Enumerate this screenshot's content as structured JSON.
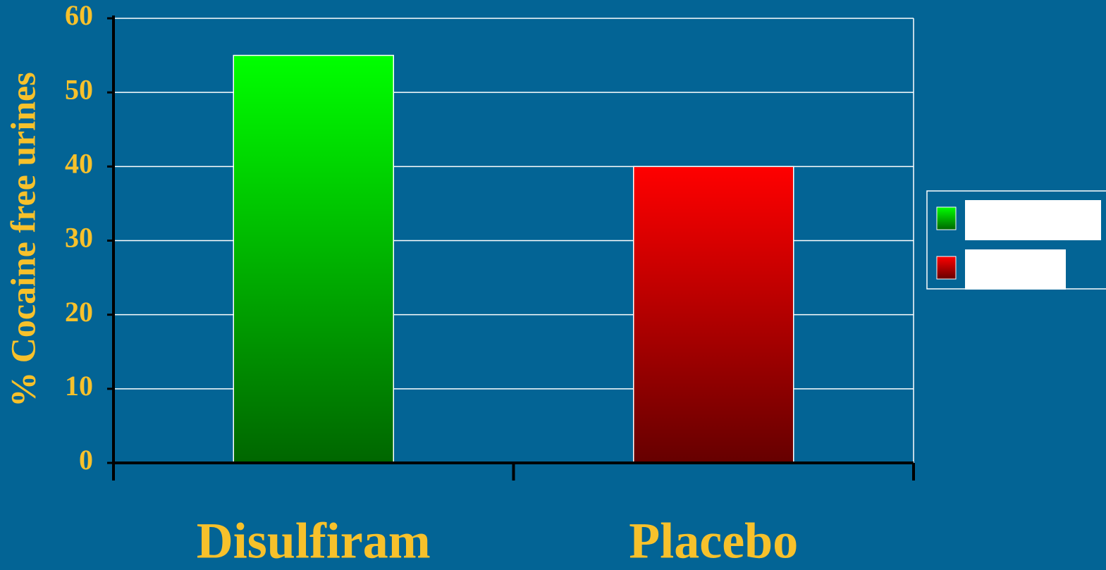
{
  "chart_data": {
    "type": "bar",
    "y_label": "% Cocaine free urines",
    "categories": [
      "Disulfiram",
      "Placebo"
    ],
    "values": [
      55,
      40
    ],
    "colors": [
      "#00ff00",
      "#ff0000"
    ],
    "ylim": [
      0,
      60
    ],
    "yticks": [
      0,
      10,
      20,
      30,
      40,
      50,
      60
    ],
    "grid": true,
    "legend": "right"
  }
}
